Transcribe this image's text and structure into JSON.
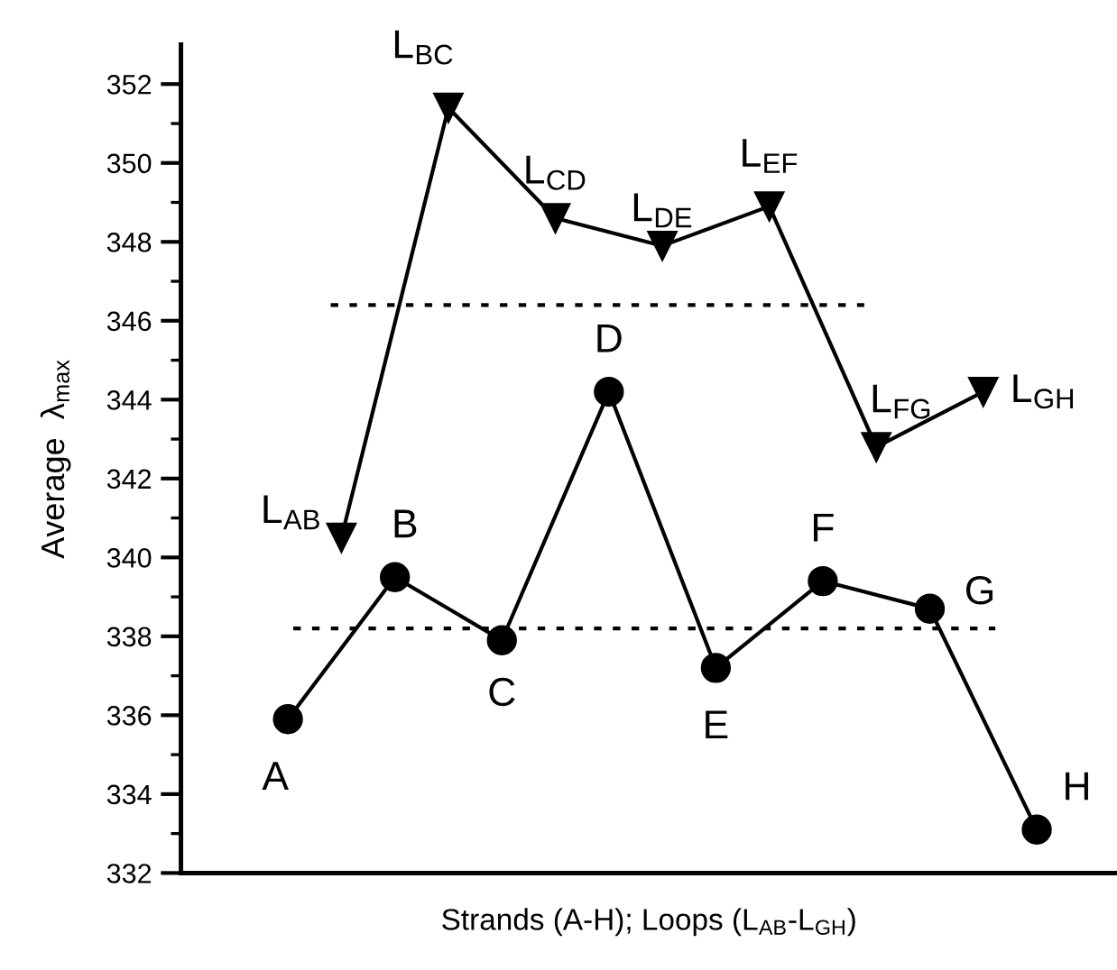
{
  "chart_data": {
    "type": "line",
    "xlabel": "Strands (A-H); Loops (L$_{AB}$-L$_{GH}$)",
    "ylabel": "Average  λ$_{max}$",
    "categories": [
      null,
      null,
      null,
      null,
      null,
      null,
      null,
      null,
      null,
      null,
      null,
      null,
      null,
      null,
      null
    ],
    "series": [
      {
        "color": "#000000",
        "marker": "circle",
        "values": [
          335.9,
          null,
          339.5,
          null,
          337.9,
          null,
          344.2,
          null,
          337.2,
          null,
          339.4,
          null,
          338.7,
          null,
          333.1
        ]
      },
      {
        "color": "#000000",
        "marker": "triangle",
        "values": [
          null,
          340.5,
          null,
          351.4,
          null,
          348.6,
          null,
          347.9,
          null,
          348.9,
          null,
          342.8,
          null,
          344.2,
          null
        ]
      }
    ],
    "annotations": [
      "A",
      "L$_{AB}$",
      "B",
      "L$_{BC}$",
      "C",
      "L$_{CD}$",
      "D",
      "L$_{DE}$",
      "E",
      "L$_{EF}$",
      "F",
      "L$_{FG}$",
      "G",
      "L$_{GH}$",
      "H"
    ],
    "ref_lines": [
      {
        "axis": "y",
        "value": 346.4,
        "color": "#000000",
        "line_style": "dotted"
      },
      {
        "axis": "y",
        "value": 338.2,
        "color": "#000000",
        "line_style": "dotted"
      }
    ],
    "ylim": [
      332,
      353
    ],
    "yticks": [
      332,
      334,
      336,
      338,
      340,
      342,
      344,
      346,
      348,
      350,
      352
    ],
    "tick_labels": "y",
    "grid": false,
    "legend": false
  }
}
